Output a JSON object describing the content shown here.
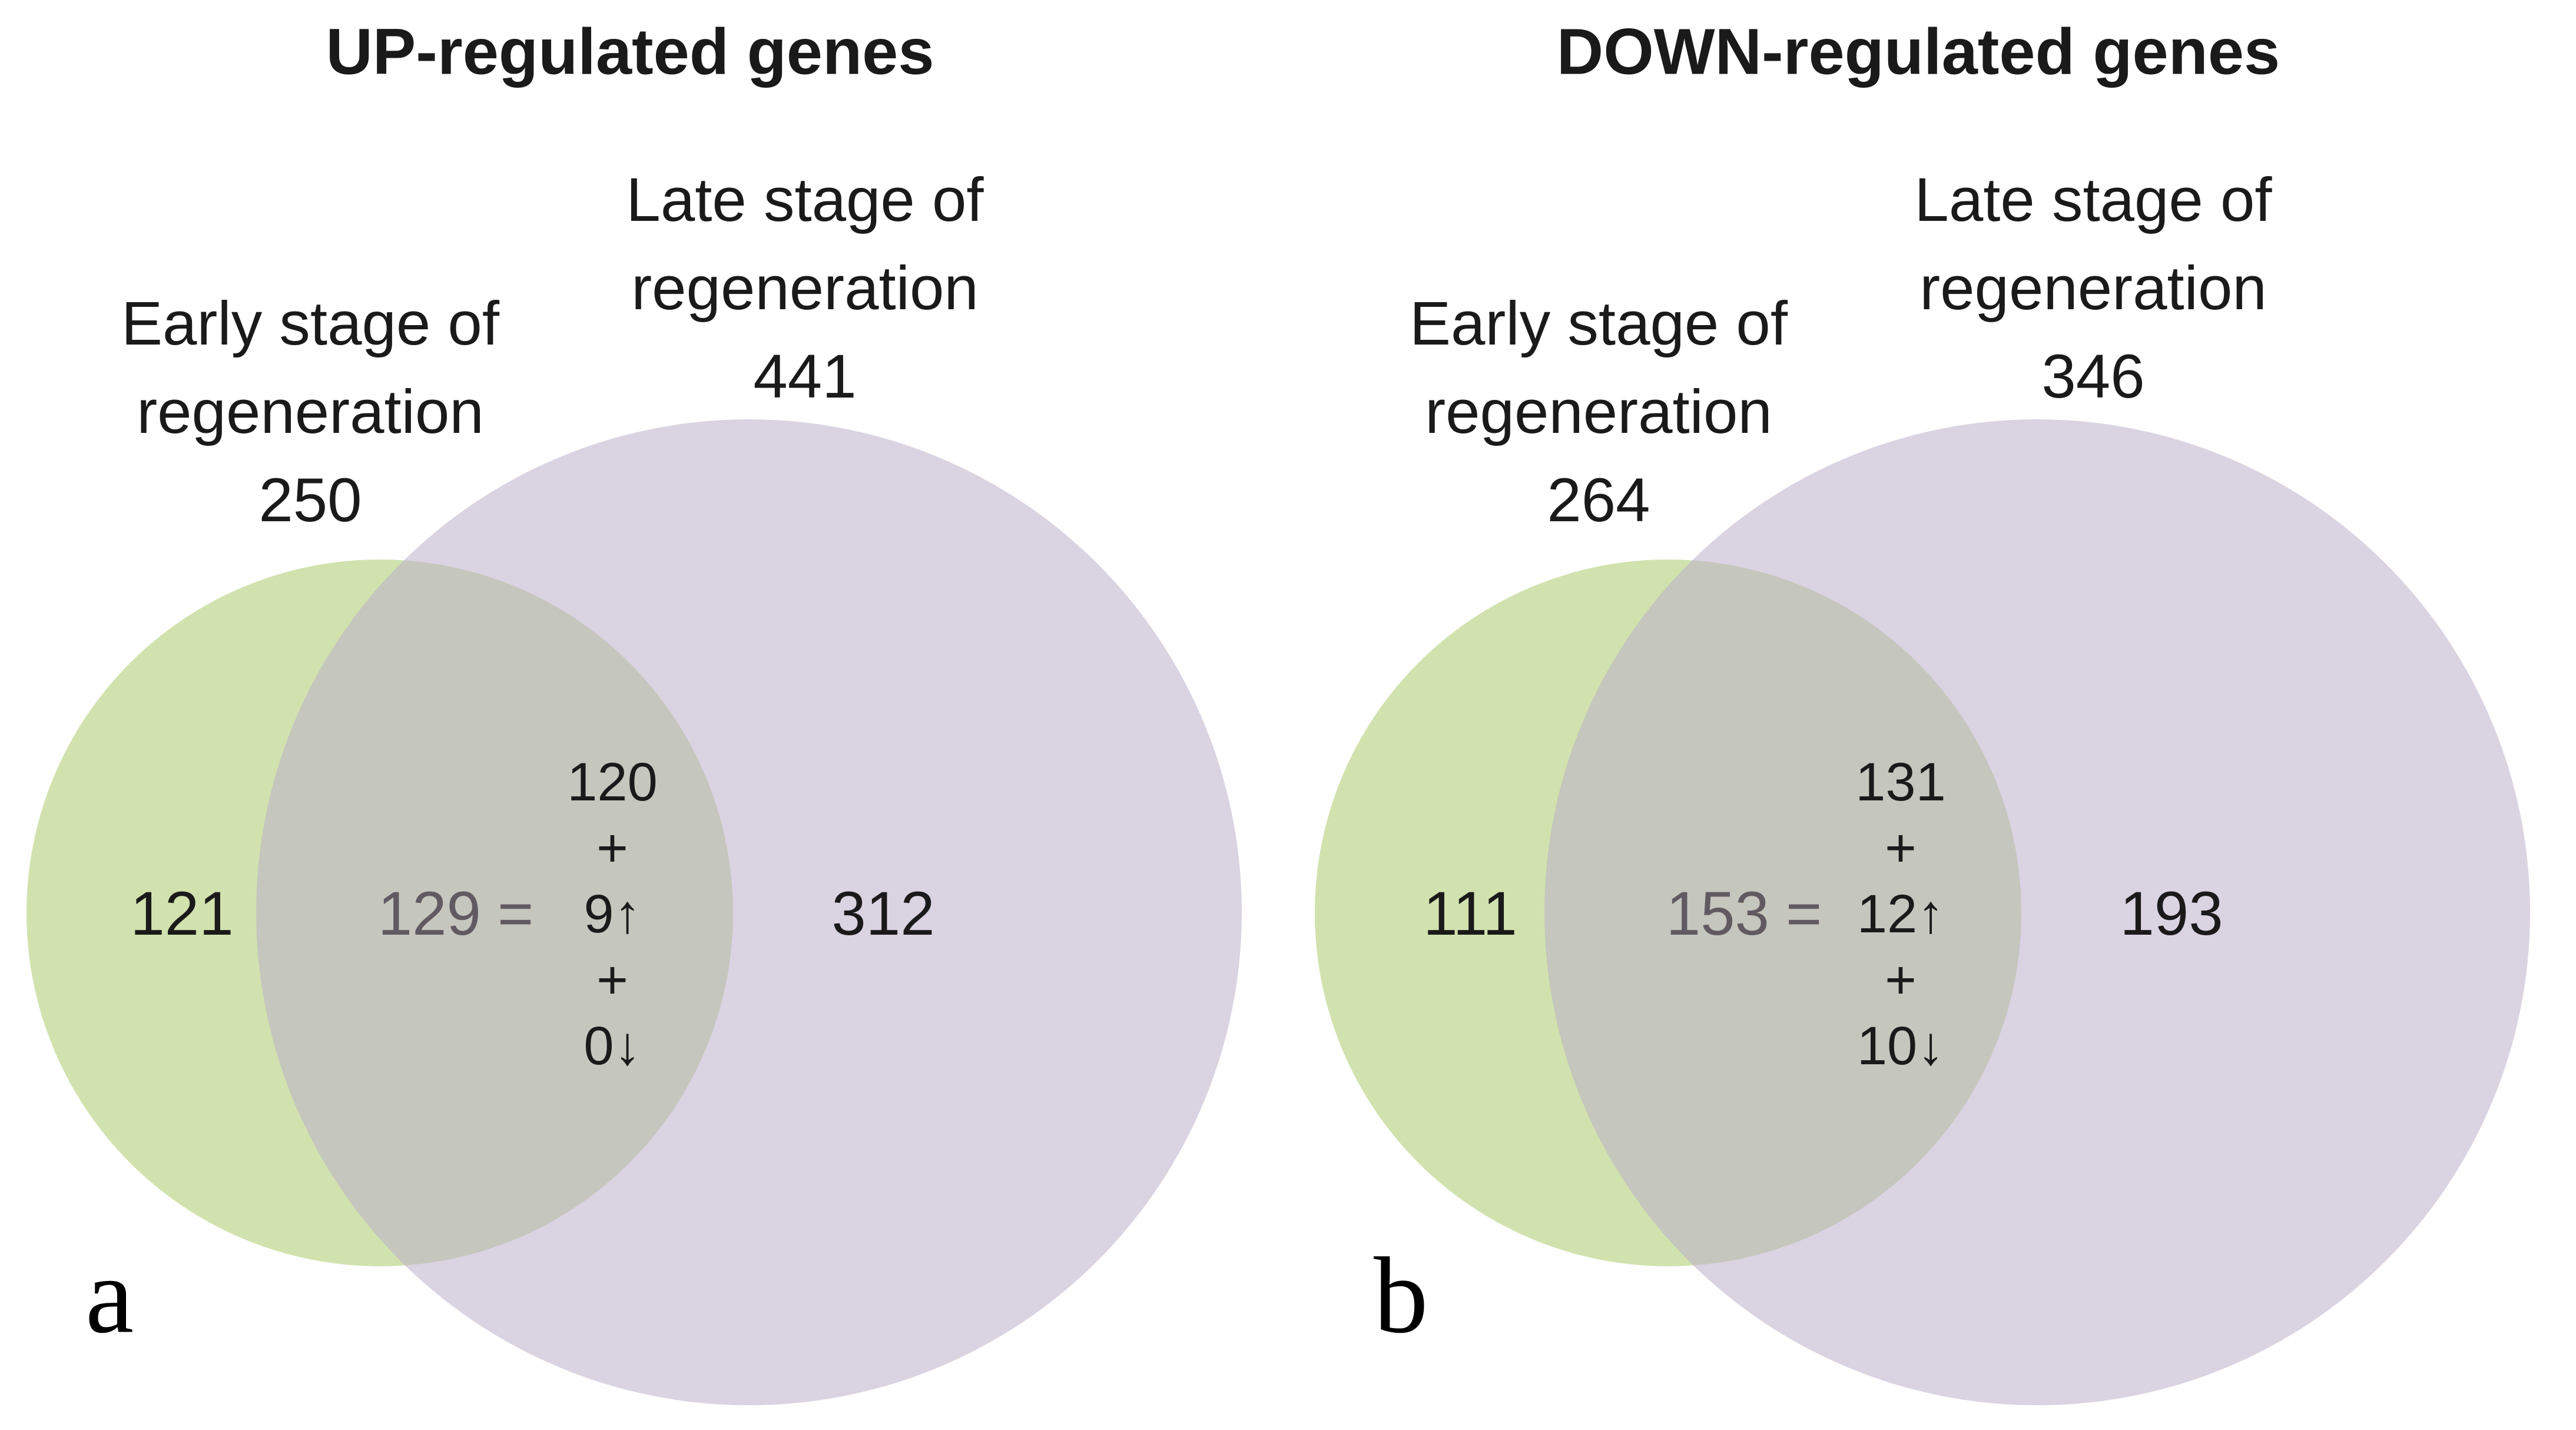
{
  "figure": {
    "panels": [
      {
        "panel_letter": "a",
        "title": "UP-regulated genes",
        "early_set": {
          "line1": "Early stage of",
          "line2": "regeneration",
          "total": "250"
        },
        "late_set": {
          "line1": "Late stage of",
          "line2": "regeneration",
          "total": "441"
        },
        "early_only": "121",
        "late_only": "312",
        "overlap_total": "129",
        "equals_sign": "=",
        "overlap_breakdown": [
          "120",
          "+",
          "9↑",
          "+",
          "0↓"
        ]
      },
      {
        "panel_letter": "b",
        "title": "DOWN-regulated genes",
        "early_set": {
          "line1": "Early stage of",
          "line2": "regeneration",
          "total": "264"
        },
        "late_set": {
          "line1": "Late stage of",
          "line2": "regeneration",
          "total": "346"
        },
        "early_only": "111",
        "late_only": "193",
        "overlap_total": "153",
        "equals_sign": "=",
        "overlap_breakdown": [
          "131",
          "+",
          "12↑",
          "+",
          "10↓"
        ]
      }
    ]
  },
  "colors": {
    "early_circle_fill": "#d1e2ae",
    "late_circle_overlay": "rgba(188,175,202,0.55)",
    "late_circle_apparent": "#dad3e2",
    "overlap_apparent": "#c5c6bd",
    "overlap_number_color": "#625a62",
    "text_color": "#1a1a1a"
  },
  "chart_data": {
    "type": "venn",
    "title": "Differentially regulated genes in early vs late stage of regeneration",
    "diagrams": [
      {
        "panel": "a",
        "title": "UP-regulated genes",
        "sets": [
          {
            "label": "Early stage of regeneration",
            "size": 250
          },
          {
            "label": "Late stage of regeneration",
            "size": 441
          }
        ],
        "early_only": 121,
        "late_only": 312,
        "intersection": 129,
        "intersection_breakdown": {
          "same": 120,
          "up": 9,
          "down": 0
        }
      },
      {
        "panel": "b",
        "title": "DOWN-regulated genes",
        "sets": [
          {
            "label": "Early stage of regeneration",
            "size": 264
          },
          {
            "label": "Late stage of regeneration",
            "size": 346
          }
        ],
        "early_only": 111,
        "late_only": 193,
        "intersection": 153,
        "intersection_breakdown": {
          "same": 131,
          "up": 12,
          "down": 10
        }
      }
    ]
  }
}
